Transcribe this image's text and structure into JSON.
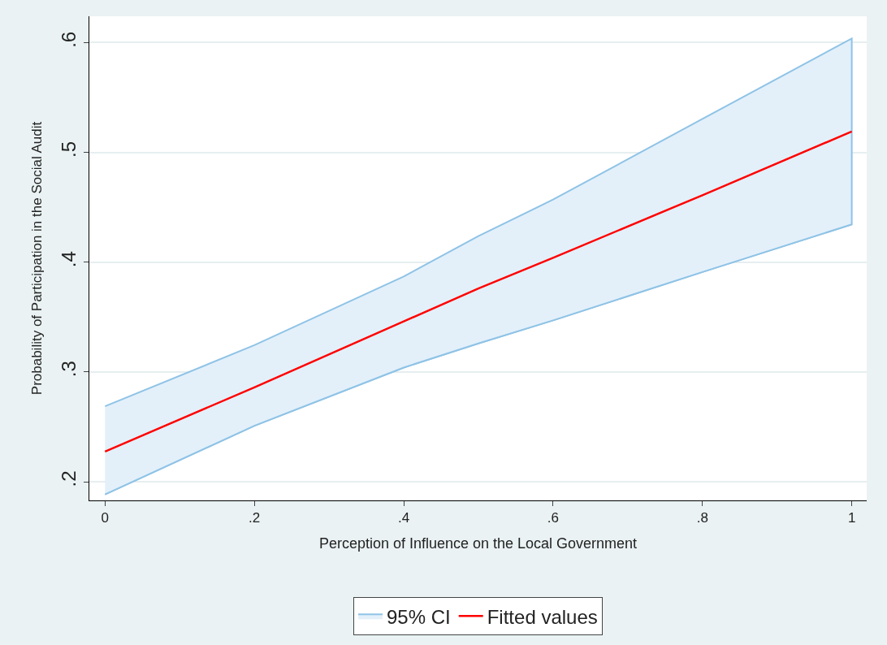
{
  "chart_data": {
    "type": "line",
    "xlabel": "Perception of Influence on the Local Government",
    "ylabel": "Probability of Participation in the Social Audit",
    "x": [
      0,
      0.2,
      0.4,
      0.5,
      0.6,
      0.8,
      1
    ],
    "series": [
      {
        "color": "#8fc3e6",
        "values": [
          0.1885,
          0.251,
          0.304,
          0.326,
          0.347,
          0.391,
          0.4344
        ]
      },
      {
        "name": "95% CI",
        "type": "area",
        "color": "#e3f0fa",
        "values": [
          0.2687,
          0.3244,
          0.387,
          0.4237,
          0.457,
          0.5305,
          0.6038
        ]
      },
      {
        "name": "Fitted values",
        "color": "#ff0000",
        "values": [
          0.2275,
          0.286,
          0.346,
          0.376,
          0.404,
          0.461,
          0.519
        ]
      }
    ],
    "xlim": [
      -0.021,
      1.02
    ],
    "ylim": [
      0.183,
      0.624
    ],
    "xticks": [
      0,
      {
        "value": 0.2,
        "label": ".2"
      },
      {
        "value": 0.4,
        "label": ".4"
      },
      {
        "value": 0.6,
        "label": ".6"
      },
      {
        "value": 0.8,
        "label": ".8"
      },
      1
    ],
    "yticks": [
      {
        "value": 0.2,
        "label": ".2"
      },
      {
        "value": 0.3,
        "label": ".3"
      },
      {
        "value": 0.4,
        "label": ".4"
      },
      {
        "value": 0.5,
        "label": ".5"
      },
      {
        "value": 0.6,
        "label": ".6"
      }
    ],
    "grid": "y",
    "legend": "bottom",
    "marker": "none",
    "line_style": "solid"
  }
}
